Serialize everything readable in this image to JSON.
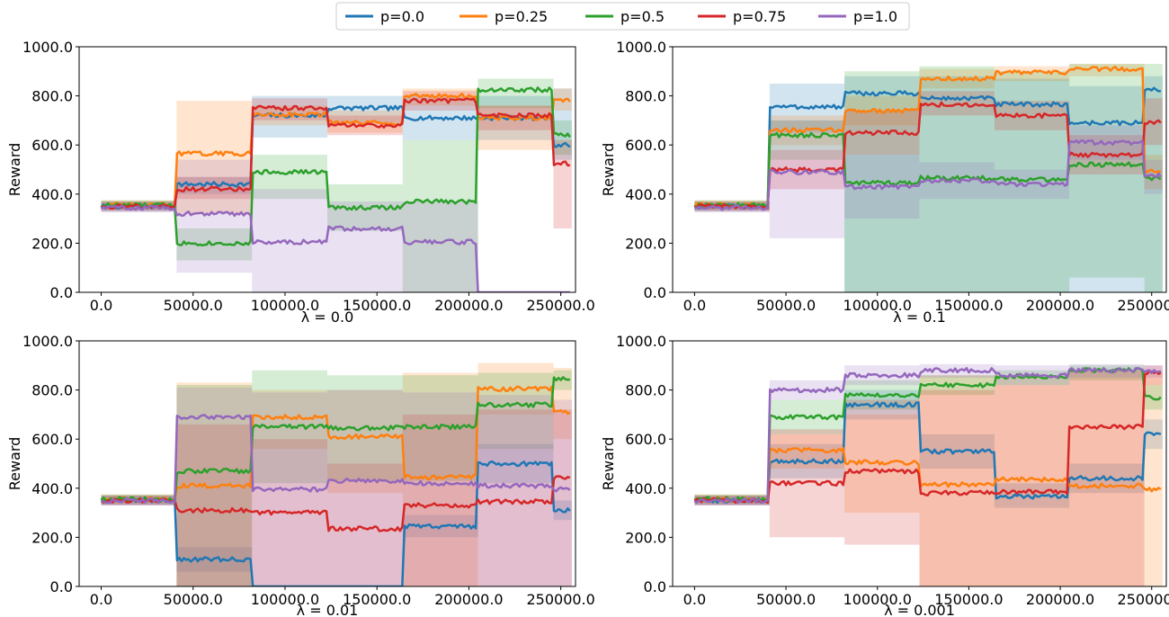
{
  "legend": [
    {
      "label": "p=0.0",
      "color": "#1f77b4"
    },
    {
      "label": "p=0.25",
      "color": "#ff7f0e"
    },
    {
      "label": "p=0.5",
      "color": "#2ca02c"
    },
    {
      "label": "p=0.75",
      "color": "#d62728"
    },
    {
      "label": "p=1.0",
      "color": "#9467bd"
    }
  ],
  "chart_data": [
    {
      "type": "line",
      "xlabel": "λ = 0.0",
      "ylabel": "Reward",
      "xlim": [
        -12000,
        258000
      ],
      "ylim": [
        0,
        1000
      ],
      "xticks": [
        0,
        50000,
        100000,
        150000,
        200000,
        250000
      ],
      "xtick_labels": [
        "0.0",
        "50000.0",
        "100000.0",
        "150000.0",
        "200000.0",
        "250000.0"
      ],
      "yticks": [
        0,
        200,
        400,
        600,
        800,
        1000
      ],
      "ytick_labels": [
        "0.0",
        "200.0",
        "400.0",
        "600.0",
        "800.0",
        "1000.0"
      ],
      "segment_bounds": [
        0,
        41000,
        82000,
        123000,
        164000,
        205000,
        246000,
        256000
      ],
      "series": [
        {
          "name": "p=0.0",
          "color": "#1f77b4",
          "levels": [
            350,
            440,
            720,
            750,
            710,
            710,
            600
          ],
          "band": [
            [
              330,
              370
            ],
            [
              400,
              470
            ],
            [
              630,
              800
            ],
            [
              690,
              800
            ],
            [
              620,
              800
            ],
            [
              620,
              800
            ],
            [
              540,
              830
            ]
          ]
        },
        {
          "name": "p=0.25",
          "color": "#ff7f0e",
          "levels": [
            355,
            565,
            725,
            690,
            800,
            710,
            785
          ],
          "band": [
            [
              335,
              375
            ],
            [
              320,
              780
            ],
            [
              680,
              760
            ],
            [
              650,
              740
            ],
            [
              760,
              830
            ],
            [
              580,
              760
            ],
            [
              740,
              830
            ]
          ]
        },
        {
          "name": "p=0.5",
          "color": "#2ca02c",
          "levels": [
            355,
            200,
            490,
            345,
            370,
            825,
            640
          ],
          "band": [
            [
              335,
              375
            ],
            [
              130,
              260
            ],
            [
              380,
              560
            ],
            [
              250,
              440
            ],
            [
              0,
              620
            ],
            [
              750,
              870
            ],
            [
              560,
              700
            ]
          ]
        },
        {
          "name": "p=0.75",
          "color": "#d62728",
          "levels": [
            350,
            420,
            750,
            680,
            780,
            720,
            525
          ],
          "band": [
            [
              330,
              370
            ],
            [
              380,
              470
            ],
            [
              700,
              790
            ],
            [
              640,
              720
            ],
            [
              740,
              820
            ],
            [
              660,
              760
            ],
            [
              260,
              620
            ]
          ]
        },
        {
          "name": "p=1.0",
          "color": "#9467bd",
          "levels": [
            345,
            320,
            205,
            260,
            205,
            0,
            0
          ],
          "band": [
            [
              325,
              365
            ],
            [
              80,
              540
            ],
            [
              0,
              420
            ],
            [
              0,
              370
            ],
            [
              0,
              370
            ],
            [
              0,
              0
            ],
            [
              0,
              0
            ]
          ]
        }
      ]
    },
    {
      "type": "line",
      "xlabel": "λ = 0.1",
      "ylabel": "Reward",
      "xlim": [
        -12000,
        258000
      ],
      "ylim": [
        0,
        1000
      ],
      "xticks": [
        0,
        50000,
        100000,
        150000,
        200000,
        250000
      ],
      "xtick_labels": [
        "0.0",
        "50000.0",
        "100000.0",
        "150000.0",
        "200000.0",
        "250000.0"
      ],
      "yticks": [
        0,
        200,
        400,
        600,
        800,
        1000
      ],
      "ytick_labels": [
        "0.0",
        "200.0",
        "400.0",
        "600.0",
        "800.0",
        "1000.0"
      ],
      "segment_bounds": [
        0,
        41000,
        82000,
        123000,
        164000,
        205000,
        246000,
        256000
      ],
      "series": [
        {
          "name": "p=0.0",
          "color": "#1f77b4",
          "levels": [
            350,
            755,
            810,
            790,
            765,
            690,
            825
          ],
          "band": [
            [
              330,
              370
            ],
            [
              650,
              850
            ],
            [
              0,
              880
            ],
            [
              0,
              880
            ],
            [
              0,
              870
            ],
            [
              0,
              840
            ],
            [
              0,
              880
            ]
          ]
        },
        {
          "name": "p=0.25",
          "color": "#ff7f0e",
          "levels": [
            355,
            660,
            740,
            870,
            895,
            910,
            495
          ],
          "band": [
            [
              335,
              375
            ],
            [
              600,
              720
            ],
            [
              680,
              800
            ],
            [
              830,
              910
            ],
            [
              860,
              920
            ],
            [
              880,
              930
            ],
            [
              420,
              560
            ]
          ]
        },
        {
          "name": "p=0.5",
          "color": "#2ca02c",
          "levels": [
            355,
            640,
            445,
            465,
            460,
            520,
            465
          ],
          "band": [
            [
              335,
              375
            ],
            [
              540,
              700
            ],
            [
              0,
              900
            ],
            [
              0,
              920
            ],
            [
              0,
              900
            ],
            [
              60,
              930
            ],
            [
              0,
              930
            ]
          ]
        },
        {
          "name": "p=0.75",
          "color": "#d62728",
          "levels": [
            350,
            500,
            650,
            765,
            720,
            560,
            695
          ],
          "band": [
            [
              330,
              370
            ],
            [
              420,
              580
            ],
            [
              560,
              740
            ],
            [
              720,
              820
            ],
            [
              660,
              780
            ],
            [
              480,
              640
            ],
            [
              600,
              790
            ]
          ]
        },
        {
          "name": "p=1.0",
          "color": "#9467bd",
          "levels": [
            345,
            490,
            430,
            455,
            440,
            610,
            475
          ],
          "band": [
            [
              325,
              365
            ],
            [
              220,
              700
            ],
            [
              300,
              560
            ],
            [
              380,
              530
            ],
            [
              380,
              500
            ],
            [
              540,
              680
            ],
            [
              400,
              540
            ]
          ]
        }
      ]
    },
    {
      "type": "line",
      "xlabel": "λ = 0.01",
      "ylabel": "Reward",
      "xlim": [
        -12000,
        258000
      ],
      "ylim": [
        0,
        1000
      ],
      "xticks": [
        0,
        50000,
        100000,
        150000,
        200000,
        250000
      ],
      "xtick_labels": [
        "0.0",
        "50000.0",
        "100000.0",
        "150000.0",
        "200000.0",
        "250000.0"
      ],
      "yticks": [
        0,
        200,
        400,
        600,
        800,
        1000
      ],
      "ytick_labels": [
        "0.0",
        "200.0",
        "400.0",
        "600.0",
        "800.0",
        "1000.0"
      ],
      "segment_bounds": [
        0,
        41000,
        82000,
        123000,
        164000,
        205000,
        246000,
        256000
      ],
      "series": [
        {
          "name": "p=0.0",
          "color": "#1f77b4",
          "levels": [
            350,
            110,
            0,
            0,
            245,
            500,
            310
          ],
          "band": [
            [
              330,
              370
            ],
            [
              60,
              160
            ],
            [
              0,
              0
            ],
            [
              0,
              0
            ],
            [
              200,
              290
            ],
            [
              420,
              580
            ],
            [
              270,
              350
            ]
          ]
        },
        {
          "name": "p=0.25",
          "color": "#ff7f0e",
          "levels": [
            355,
            410,
            690,
            610,
            445,
            805,
            710
          ],
          "band": [
            [
              335,
              375
            ],
            [
              0,
              830
            ],
            [
              560,
              800
            ],
            [
              380,
              800
            ],
            [
              0,
              870
            ],
            [
              700,
              910
            ],
            [
              600,
              890
            ]
          ]
        },
        {
          "name": "p=0.5",
          "color": "#2ca02c",
          "levels": [
            355,
            470,
            650,
            645,
            650,
            740,
            845
          ],
          "band": [
            [
              335,
              375
            ],
            [
              0,
              820
            ],
            [
              420,
              880
            ],
            [
              430,
              860
            ],
            [
              430,
              860
            ],
            [
              560,
              870
            ],
            [
              800,
              880
            ]
          ]
        },
        {
          "name": "p=0.75",
          "color": "#d62728",
          "levels": [
            350,
            310,
            300,
            235,
            330,
            345,
            445
          ],
          "band": [
            [
              330,
              370
            ],
            [
              0,
              660
            ],
            [
              0,
              600
            ],
            [
              0,
              500
            ],
            [
              0,
              700
            ],
            [
              0,
              720
            ],
            [
              0,
              720
            ]
          ]
        },
        {
          "name": "p=1.0",
          "color": "#9467bd",
          "levels": [
            350,
            690,
            395,
            430,
            420,
            410,
            395
          ],
          "band": [
            [
              330,
              370
            ],
            [
              0,
              810
            ],
            [
              0,
              790
            ],
            [
              0,
              800
            ],
            [
              0,
              790
            ],
            [
              0,
              780
            ],
            [
              0,
              760
            ]
          ]
        }
      ]
    },
    {
      "type": "line",
      "xlabel": "λ = 0.001",
      "ylabel": "Reward",
      "xlim": [
        -12000,
        258000
      ],
      "ylim": [
        0,
        1000
      ],
      "xticks": [
        0,
        50000,
        100000,
        150000,
        200000,
        250000
      ],
      "xtick_labels": [
        "0.0",
        "50000.0",
        "100000.0",
        "150000.0",
        "200000.0",
        "250000.0"
      ],
      "yticks": [
        0,
        200,
        400,
        600,
        800,
        1000
      ],
      "ytick_labels": [
        "0.0",
        "200.0",
        "400.0",
        "600.0",
        "800.0",
        "1000.0"
      ],
      "segment_bounds": [
        0,
        41000,
        82000,
        123000,
        164000,
        205000,
        246000,
        256000
      ],
      "series": [
        {
          "name": "p=0.0",
          "color": "#1f77b4",
          "levels": [
            350,
            510,
            740,
            550,
            365,
            440,
            620
          ],
          "band": [
            [
              330,
              370
            ],
            [
              440,
              580
            ],
            [
              680,
              800
            ],
            [
              480,
              620
            ],
            [
              320,
              420
            ],
            [
              380,
              500
            ],
            [
              560,
              680
            ]
          ]
        },
        {
          "name": "p=0.25",
          "color": "#ff7f0e",
          "levels": [
            355,
            555,
            505,
            415,
            435,
            410,
            395
          ],
          "band": [
            [
              335,
              375
            ],
            [
              480,
              620
            ],
            [
              300,
              700
            ],
            [
              0,
              860
            ],
            [
              0,
              860
            ],
            [
              0,
              880
            ],
            [
              0,
              880
            ]
          ]
        },
        {
          "name": "p=0.5",
          "color": "#2ca02c",
          "levels": [
            355,
            690,
            780,
            820,
            855,
            880,
            770
          ],
          "band": [
            [
              335,
              375
            ],
            [
              620,
              760
            ],
            [
              720,
              840
            ],
            [
              780,
              860
            ],
            [
              820,
              880
            ],
            [
              840,
              900
            ],
            [
              720,
              820
            ]
          ]
        },
        {
          "name": "p=0.75",
          "color": "#d62728",
          "levels": [
            350,
            420,
            470,
            380,
            385,
            650,
            870
          ],
          "band": [
            [
              330,
              370
            ],
            [
              200,
              640
            ],
            [
              170,
              760
            ],
            [
              0,
              800
            ],
            [
              0,
              820
            ],
            [
              0,
              880
            ],
            [
              820,
              900
            ]
          ]
        },
        {
          "name": "p=1.0",
          "color": "#9467bd",
          "levels": [
            350,
            800,
            860,
            880,
            860,
            880,
            875
          ],
          "band": [
            [
              330,
              370
            ],
            [
              760,
              840
            ],
            [
              820,
              900
            ],
            [
              850,
              905
            ],
            [
              820,
              900
            ],
            [
              850,
              905
            ],
            [
              850,
              900
            ]
          ]
        }
      ]
    }
  ]
}
